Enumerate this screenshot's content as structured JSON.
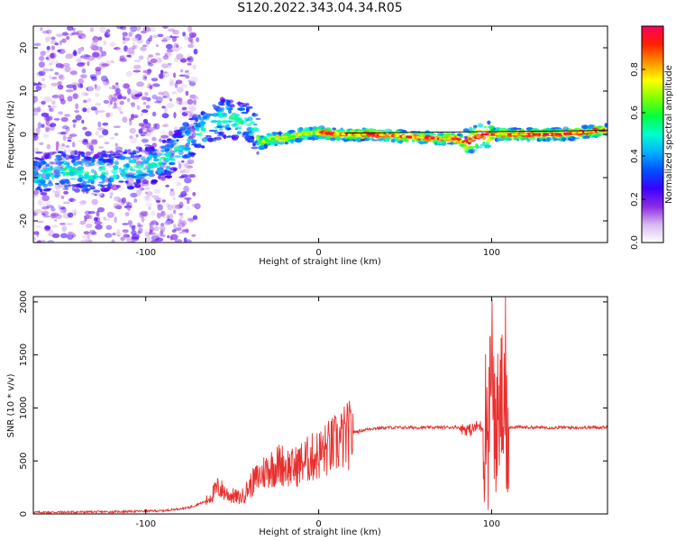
{
  "title": "S120.2022.343.04.34.R05",
  "chart_data": [
    {
      "type": "heatmap",
      "title": "S120.2022.343.04.34.R05",
      "xlabel": "Height of straight line (km)",
      "ylabel": "Frequency (Hz)",
      "xlim": [
        -165,
        167
      ],
      "ylim": [
        -25,
        25
      ],
      "xticks": [
        -100,
        0,
        100
      ],
      "yticks": [
        -20,
        -10,
        0,
        10,
        20
      ],
      "grid": false,
      "colorbar": {
        "label": "Normalized spectral amplitude",
        "range": [
          0.0,
          1.0
        ],
        "ticks": [
          "0.0",
          "0.2",
          "0.4",
          "0.6",
          "0.8"
        ],
        "colors": [
          "#ffffff",
          "#d9b8f0",
          "#8a2be2",
          "#3a00ff",
          "#0050ff",
          "#00b0ff",
          "#00ffd0",
          "#00ff40",
          "#80ff00",
          "#ffff00",
          "#ff9000",
          "#ff2000",
          "#ff0060"
        ]
      },
      "ridge": {
        "x": [
          -165,
          -150,
          -130,
          -110,
          -95,
          -85,
          -75,
          -65,
          -55,
          -45,
          -38,
          -33,
          -28,
          -20,
          -10,
          0,
          10,
          30,
          50,
          70,
          80,
          85,
          90,
          95,
          100,
          120,
          140,
          167
        ],
        "y": [
          -10,
          -8,
          -9,
          -8,
          -7,
          -5,
          -1,
          2,
          4,
          3,
          2,
          -2,
          -1,
          -1,
          0,
          0.5,
          0,
          0,
          -0.5,
          -1,
          -1,
          -2,
          -1,
          0,
          0,
          0,
          0,
          1
        ]
      }
    },
    {
      "type": "line",
      "xlabel": "Height of straight line (km)",
      "ylabel": "SNR (10 * v/v)",
      "xlim": [
        -165,
        167
      ],
      "ylim": [
        0,
        2050
      ],
      "xticks": [
        -100,
        0,
        100
      ],
      "yticks": [
        0,
        500,
        1000,
        1500,
        2000
      ],
      "grid": false,
      "color": "#e8302e",
      "envelope": {
        "x": [
          -165,
          -120,
          -90,
          -75,
          -65,
          -58,
          -52,
          -45,
          -38,
          -30,
          -22,
          -15,
          -8,
          0,
          10,
          20,
          30,
          40,
          60,
          80,
          85,
          88,
          92,
          95,
          98,
          100,
          102,
          104,
          106,
          108,
          110,
          130,
          150,
          167
        ],
        "y": [
          15,
          20,
          30,
          60,
          120,
          250,
          180,
          150,
          300,
          420,
          470,
          430,
          500,
          560,
          660,
          770,
          805,
          815,
          815,
          818,
          800,
          790,
          830,
          820,
          650,
          1300,
          800,
          900,
          1100,
          650,
          820,
          815,
          815,
          818
        ]
      }
    }
  ]
}
